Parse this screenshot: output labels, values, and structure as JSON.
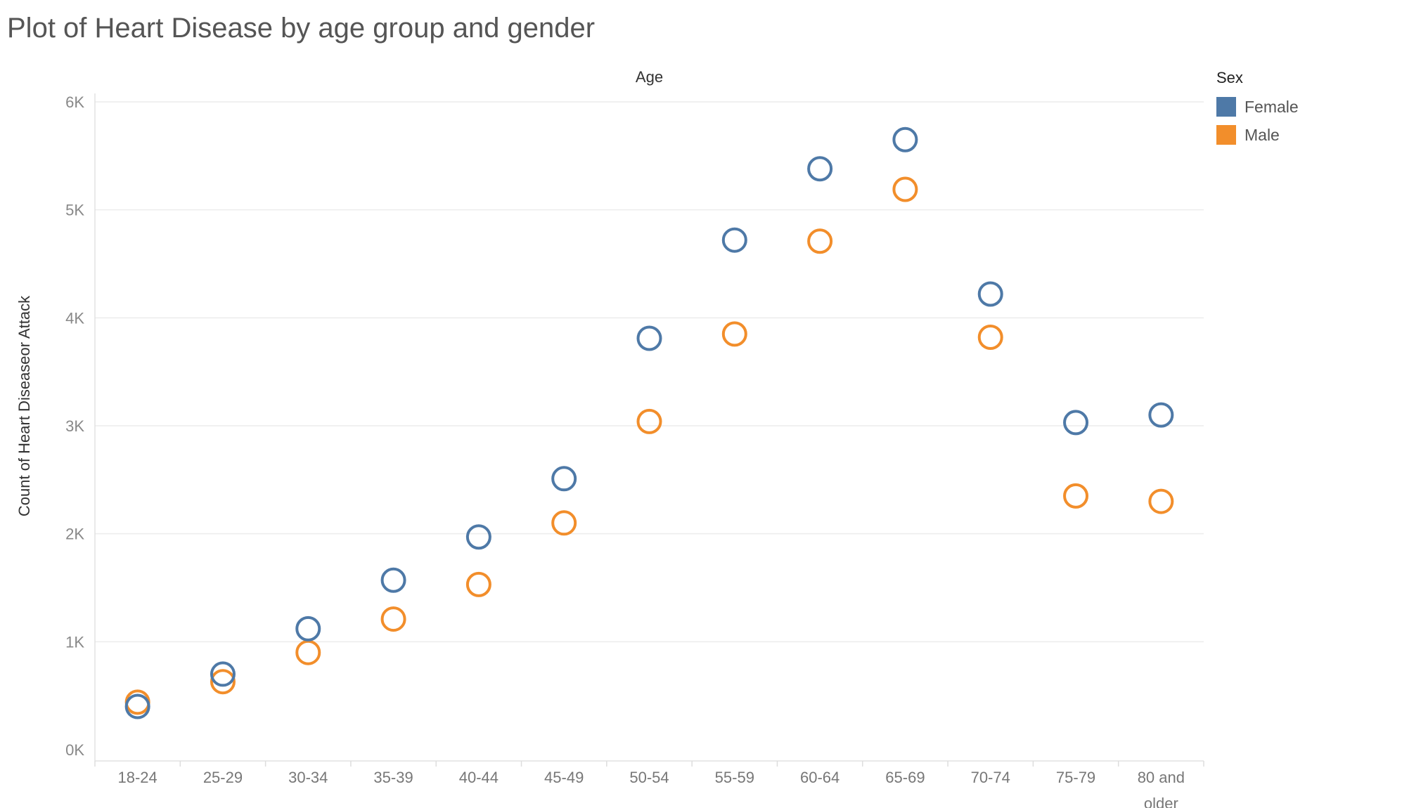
{
  "chart_data": {
    "type": "scatter",
    "title": "Plot of Heart Disease by age group and gender",
    "column_header": "Age",
    "ylabel": "Count of Heart Diseaseor Attack",
    "ylim": [
      0,
      6000
    ],
    "yticks": [
      {
        "value": 0,
        "label": "0K"
      },
      {
        "value": 1000,
        "label": "1K"
      },
      {
        "value": 2000,
        "label": "2K"
      },
      {
        "value": 3000,
        "label": "3K"
      },
      {
        "value": 4000,
        "label": "4K"
      },
      {
        "value": 5000,
        "label": "5K"
      },
      {
        "value": 6000,
        "label": "6K"
      }
    ],
    "categories": [
      "18-24",
      "25-29",
      "30-34",
      "35-39",
      "40-44",
      "45-49",
      "50-54",
      "55-59",
      "60-64",
      "65-69",
      "70-74",
      "75-79",
      "80 and older"
    ],
    "category_lines": [
      [
        "18-24"
      ],
      [
        "25-29"
      ],
      [
        "30-34"
      ],
      [
        "35-39"
      ],
      [
        "40-44"
      ],
      [
        "45-49"
      ],
      [
        "50-54"
      ],
      [
        "55-59"
      ],
      [
        "60-64"
      ],
      [
        "65-69"
      ],
      [
        "70-74"
      ],
      [
        "75-79"
      ],
      [
        "80 and",
        "older"
      ]
    ],
    "legend": {
      "title": "Sex",
      "position": "top-right"
    },
    "grid": true,
    "marker": "hollow-circle",
    "series": [
      {
        "name": "Female",
        "color": "#4e79a7",
        "values": [
          400,
          700,
          1120,
          1570,
          1970,
          2510,
          3810,
          4720,
          5380,
          5650,
          4220,
          3030,
          3100
        ]
      },
      {
        "name": "Male",
        "color": "#f28e2b",
        "values": [
          440,
          630,
          900,
          1210,
          1530,
          2100,
          3040,
          3850,
          4710,
          5190,
          3820,
          2350,
          2300
        ]
      }
    ]
  }
}
